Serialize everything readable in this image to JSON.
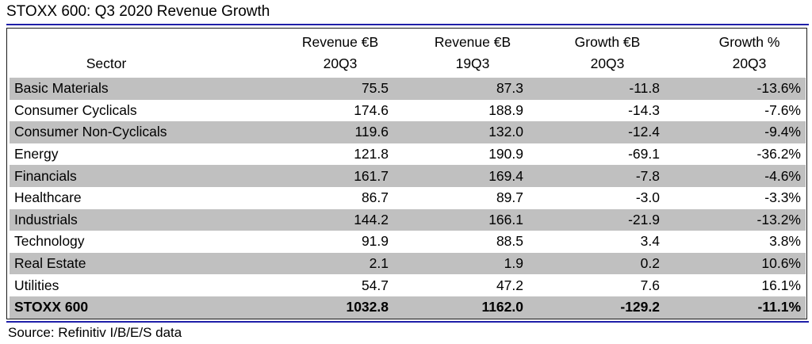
{
  "title": "STOXX 600: Q3 2020 Revenue Growth",
  "source": "Source: Refinitiv I/B/E/S data",
  "colors": {
    "rule": "#1f1fa8",
    "row_shade": "#c0c0c0",
    "text": "#000000"
  },
  "chart_data": {
    "type": "table",
    "title": "STOXX 600: Q3 2020 Revenue Growth",
    "columns": [
      {
        "key": "sector",
        "line1": "",
        "line2": "Sector"
      },
      {
        "key": "rev_20q3",
        "line1": "Revenue €B",
        "line2": "20Q3"
      },
      {
        "key": "rev_19q3",
        "line1": "Revenue €B",
        "line2": "19Q3"
      },
      {
        "key": "growth_eur",
        "line1": "Growth €B",
        "line2": "20Q3"
      },
      {
        "key": "growth_pct",
        "line1": "Growth %",
        "line2": "20Q3"
      }
    ],
    "rows": [
      {
        "sector": "Basic Materials",
        "rev_20q3": "75.5",
        "rev_19q3": "87.3",
        "growth_eur": "-11.8",
        "growth_pct": "-13.6%"
      },
      {
        "sector": "Consumer Cyclicals",
        "rev_20q3": "174.6",
        "rev_19q3": "188.9",
        "growth_eur": "-14.3",
        "growth_pct": "-7.6%"
      },
      {
        "sector": "Consumer Non-Cyclicals",
        "rev_20q3": "119.6",
        "rev_19q3": "132.0",
        "growth_eur": "-12.4",
        "growth_pct": "-9.4%"
      },
      {
        "sector": "Energy",
        "rev_20q3": "121.8",
        "rev_19q3": "190.9",
        "growth_eur": "-69.1",
        "growth_pct": "-36.2%"
      },
      {
        "sector": "Financials",
        "rev_20q3": "161.7",
        "rev_19q3": "169.4",
        "growth_eur": "-7.8",
        "growth_pct": "-4.6%"
      },
      {
        "sector": "Healthcare",
        "rev_20q3": "86.7",
        "rev_19q3": "89.7",
        "growth_eur": "-3.0",
        "growth_pct": "-3.3%"
      },
      {
        "sector": "Industrials",
        "rev_20q3": "144.2",
        "rev_19q3": "166.1",
        "growth_eur": "-21.9",
        "growth_pct": "-13.2%"
      },
      {
        "sector": "Technology",
        "rev_20q3": "91.9",
        "rev_19q3": "88.5",
        "growth_eur": "3.4",
        "growth_pct": "3.8%"
      },
      {
        "sector": "Real Estate",
        "rev_20q3": "2.1",
        "rev_19q3": "1.9",
        "growth_eur": "0.2",
        "growth_pct": "10.6%"
      },
      {
        "sector": "Utilities",
        "rev_20q3": "54.7",
        "rev_19q3": "47.2",
        "growth_eur": "7.6",
        "growth_pct": "16.1%"
      }
    ],
    "total": {
      "sector": "STOXX 600",
      "rev_20q3": "1032.8",
      "rev_19q3": "1162.0",
      "growth_eur": "-129.2",
      "growth_pct": "-11.1%"
    }
  }
}
